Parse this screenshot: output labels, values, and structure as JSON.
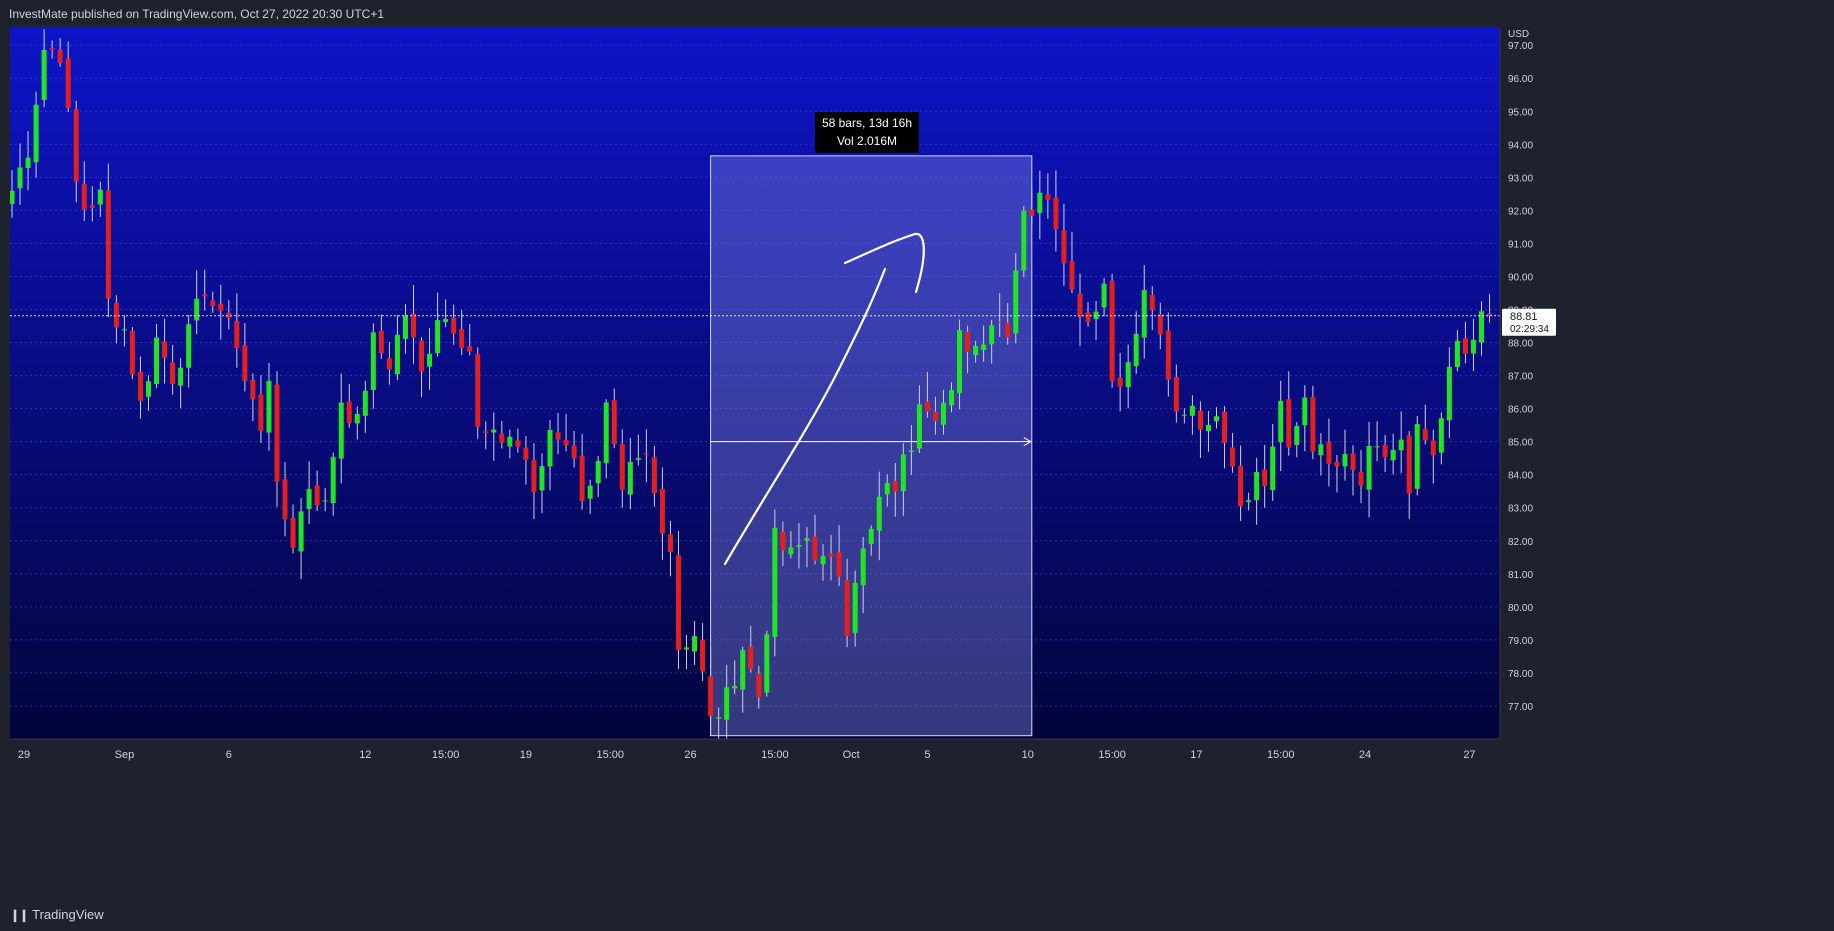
{
  "header": {
    "published": "InvestMate published on TradingView.com, Oct 27, 2022 20:30 UTC+1"
  },
  "footer": {
    "logo_mark": "❙❙",
    "logo_text": "TradingView"
  },
  "colors": {
    "up": "#22e522",
    "down": "#e51e1e",
    "wick": "#cfcfe8",
    "bg_top": "#0e14c8",
    "bg_bottom": "#02043a",
    "panel": "#1e222d",
    "axis_text": "#d1d4dc"
  },
  "measure": {
    "line1": "58 bars, 13d 16h",
    "line2": "Vol 2.016M"
  },
  "last_price": {
    "value": "88.81",
    "countdown": "02:29:34"
  },
  "chart_data": {
    "type": "candlestick",
    "title": "",
    "currency_label": "USD",
    "y_ticks": [
      97,
      96,
      95,
      94,
      93,
      92,
      91,
      90,
      89,
      88,
      87,
      86,
      85,
      84,
      83,
      82,
      81,
      80,
      79,
      78,
      77
    ],
    "ylim": [
      76.0,
      97.55
    ],
    "x_tick_labels": [
      {
        "label": "29",
        "bar": 1.5
      },
      {
        "label": "Sep",
        "bar": 14
      },
      {
        "label": "6",
        "bar": 27
      },
      {
        "label": "12",
        "bar": 44
      },
      {
        "label": "15:00",
        "bar": 54
      },
      {
        "label": "19",
        "bar": 64
      },
      {
        "label": "15:00",
        "bar": 74.5
      },
      {
        "label": "26",
        "bar": 84.5
      },
      {
        "label": "15:00",
        "bar": 95
      },
      {
        "label": "Oct",
        "bar": 104.5
      },
      {
        "label": "5",
        "bar": 114
      },
      {
        "label": "10",
        "bar": 126.5
      },
      {
        "label": "15:00",
        "bar": 137
      },
      {
        "label": "17",
        "bar": 147.5
      },
      {
        "label": "15:00",
        "bar": 158
      },
      {
        "label": "24",
        "bar": 168.5
      },
      {
        "label": "27",
        "bar": 181.5
      }
    ],
    "measure_range": {
      "from_bar": 87,
      "to_bar": 127,
      "low": 76.1,
      "high": 93.65,
      "arrow_price": 85.0
    },
    "last_close": 88.81,
    "ohlc_anchors": [
      [
        0,
        92.6
      ],
      [
        2,
        93.9
      ],
      [
        4,
        96.9
      ],
      [
        6,
        96.8
      ],
      [
        8,
        92.8
      ],
      [
        9,
        92.1
      ],
      [
        11,
        92.4
      ],
      [
        12,
        89.2
      ],
      [
        14,
        88.4
      ],
      [
        16,
        86.1
      ],
      [
        18,
        88.1
      ],
      [
        20,
        87.0
      ],
      [
        22,
        88.2
      ],
      [
        24,
        89.7
      ],
      [
        26,
        88.6
      ],
      [
        27,
        89.0
      ],
      [
        29,
        86.8
      ],
      [
        31,
        85.5
      ],
      [
        32,
        87.1
      ],
      [
        33,
        83.4
      ],
      [
        35,
        82.0
      ],
      [
        37,
        83.7
      ],
      [
        39,
        83.0
      ],
      [
        41,
        86.3
      ],
      [
        43,
        85.5
      ],
      [
        45,
        88.0
      ],
      [
        47,
        87.4
      ],
      [
        49,
        88.9
      ],
      [
        51,
        87.0
      ],
      [
        53,
        88.9
      ],
      [
        55,
        88.6
      ],
      [
        57,
        87.8
      ],
      [
        58,
        85.3
      ],
      [
        60,
        85.0
      ],
      [
        62,
        85.2
      ],
      [
        64,
        84.5
      ],
      [
        65,
        83.2
      ],
      [
        67,
        85.4
      ],
      [
        69,
        85.1
      ],
      [
        71,
        83.5
      ],
      [
        73,
        84.2
      ],
      [
        74,
        85.9
      ],
      [
        76,
        83.2
      ],
      [
        77,
        84.1
      ],
      [
        79,
        84.5
      ],
      [
        80,
        83.4
      ],
      [
        82,
        81.8
      ],
      [
        83,
        78.8
      ],
      [
        85,
        79.2
      ],
      [
        86,
        77.9
      ],
      [
        87,
        76.5
      ],
      [
        89,
        77.2
      ],
      [
        91,
        78.8
      ],
      [
        93,
        77.3
      ],
      [
        94,
        79.5
      ],
      [
        95,
        82.0
      ],
      [
        97,
        81.5
      ],
      [
        99,
        82.1
      ],
      [
        101,
        81.3
      ],
      [
        103,
        81.1
      ],
      [
        104,
        79.5
      ],
      [
        105,
        81.0
      ],
      [
        107,
        82.2
      ],
      [
        108,
        83.2
      ],
      [
        110,
        83.7
      ],
      [
        112,
        85.0
      ],
      [
        113,
        86.5
      ],
      [
        115,
        86.0
      ],
      [
        117,
        86.3
      ],
      [
        118,
        88.1
      ],
      [
        120,
        87.9
      ],
      [
        122,
        88.7
      ],
      [
        124,
        88.5
      ],
      [
        125,
        90.3
      ],
      [
        126,
        92.2
      ],
      [
        127,
        92.0
      ],
      [
        129,
        92.6
      ],
      [
        131,
        90.8
      ],
      [
        132,
        89.5
      ],
      [
        134,
        88.7
      ],
      [
        136,
        89.8
      ],
      [
        137,
        86.9
      ],
      [
        139,
        87.2
      ],
      [
        141,
        89.4
      ],
      [
        142,
        89.1
      ],
      [
        144,
        86.7
      ],
      [
        145,
        85.8
      ],
      [
        147,
        86.2
      ],
      [
        149,
        85.2
      ],
      [
        150,
        86.1
      ],
      [
        152,
        84.5
      ],
      [
        153,
        83.2
      ],
      [
        155,
        84.0
      ],
      [
        156,
        83.7
      ],
      [
        158,
        86.2
      ],
      [
        159,
        84.5
      ],
      [
        161,
        86.4
      ],
      [
        162,
        85.0
      ],
      [
        164,
        84.2
      ],
      [
        166,
        84.3
      ],
      [
        168,
        83.7
      ],
      [
        169,
        84.5
      ],
      [
        171,
        84.6
      ],
      [
        173,
        84.9
      ],
      [
        174,
        83.2
      ],
      [
        175,
        85.2
      ],
      [
        176,
        85.0
      ],
      [
        177,
        84.2
      ],
      [
        179,
        87.0
      ],
      [
        180,
        88.1
      ],
      [
        181,
        88.0
      ],
      [
        182,
        87.7
      ],
      [
        183,
        88.9
      ],
      [
        184,
        88.81
      ]
    ],
    "annotation": {
      "type": "hand-drawn arrow",
      "direction": "up"
    }
  }
}
